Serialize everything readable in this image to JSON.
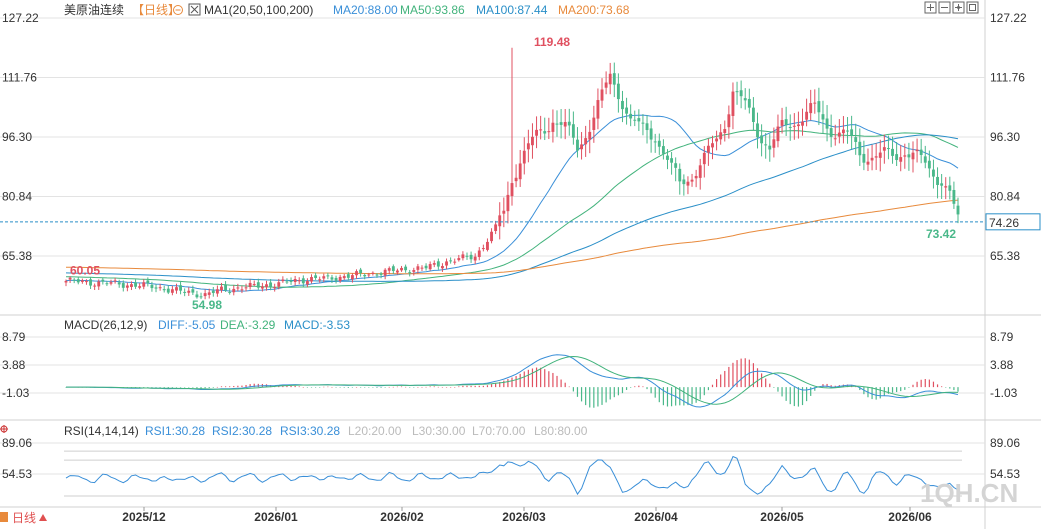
{
  "toolbar": {
    "symbol": "美原油连续",
    "period": "【日线】",
    "ma_label": "MA1(20,50,100,200)",
    "ma_values": [
      "MA20:88.00",
      "MA50:93.86",
      "MA100:87.44",
      "MA200:73.68"
    ],
    "bottom_period": "日线",
    "watermark": "1QH.CN"
  },
  "colors": {
    "up": "#e05060",
    "down": "#4ab88a",
    "ma20": "#3a8fd8",
    "ma50": "#42b37c",
    "ma100": "#2a8fc8",
    "ma200": "#e88a3c",
    "diff": "#3a8fd8",
    "dea": "#42b37c",
    "rsi": "#3a8fd8",
    "grid": "#e3e3e3",
    "axis_text": "#333333",
    "current_price_bg": "#2a8fc8"
  },
  "chart_data": [
    {
      "type": "candlestick",
      "name": "price",
      "title": "美原油连续【日线】",
      "ylim": [
        50.0,
        127.22
      ],
      "yticks": [
        "127.22",
        "111.76",
        "96.30",
        "80.84",
        "65.38"
      ],
      "ytick_values": [
        127.22,
        111.76,
        96.3,
        80.84,
        65.38
      ],
      "xlabels": [
        "2025/12",
        "2026/01",
        "2026/02",
        "2026/03",
        "2026/04",
        "2026/05",
        "2026/06"
      ],
      "annotations": [
        {
          "text": "119.48",
          "value": 119.48,
          "kind": "high"
        },
        {
          "text": "60.05",
          "value": 60.05,
          "kind": "high"
        },
        {
          "text": "54.98",
          "value": 54.98,
          "kind": "low"
        },
        {
          "text": "73.42",
          "value": 73.42,
          "kind": "low"
        }
      ],
      "current_price": "74.26",
      "current_price_value": 74.26,
      "ma_legend": [
        "MA20:88.00",
        "MA50:93.86",
        "MA100:87.44",
        "MA200:73.68"
      ]
    },
    {
      "type": "macd",
      "name": "macd",
      "title": "MACD(26,12,9)",
      "legend": [
        "DIFF:-5.05",
        "DEA:-3.29",
        "MACD:-3.53"
      ],
      "ylim": [
        -7.5,
        11.0
      ],
      "yticks": [
        "8.79",
        "3.88",
        "-1.03"
      ],
      "ytick_values": [
        8.79,
        3.88,
        -1.03
      ]
    },
    {
      "type": "line",
      "name": "rsi",
      "title": "RSI(14,14,14)",
      "legend": [
        "RSI1:30.28",
        "RSI2:30.28",
        "RSI3:30.28"
      ],
      "levels_legend": [
        "L20:20.00",
        "L30:30.00",
        "L70:70.00",
        "L80:80.00"
      ],
      "levels": [
        20,
        30,
        70,
        80
      ],
      "ylim": [
        20,
        100
      ],
      "yticks": [
        "89.06",
        "54.53"
      ],
      "ytick_values": [
        89.06,
        54.53
      ]
    }
  ],
  "icons": [
    "settings-icon",
    "zoom-in-icon",
    "zoom-out-icon",
    "move-icon",
    "reset-icon",
    "calendar-icon"
  ]
}
